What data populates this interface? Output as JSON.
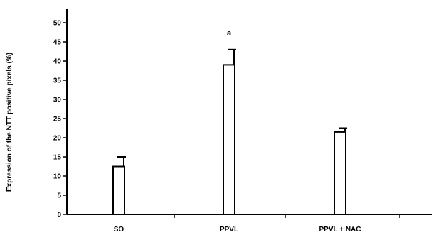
{
  "chart_data": {
    "type": "bar",
    "title": "",
    "xlabel": "",
    "ylabel": "Expression of the NTT positive pixels (%)",
    "categories": [
      "SO",
      "PPVL",
      "PPVL + NAC"
    ],
    "values": [
      12.5,
      39,
      21.5
    ],
    "errors": [
      2.5,
      4,
      1
    ],
    "ylim": [
      0,
      50
    ],
    "yticks": [
      "0",
      "5",
      "10",
      "15",
      "20",
      "25",
      "30",
      "35",
      "40",
      "45",
      "50"
    ],
    "annotations": [
      {
        "category": "PPVL",
        "text": "a"
      }
    ],
    "grid": false,
    "legend": "none",
    "bar_fill": "#ffffff",
    "bar_stroke": "#000000"
  }
}
